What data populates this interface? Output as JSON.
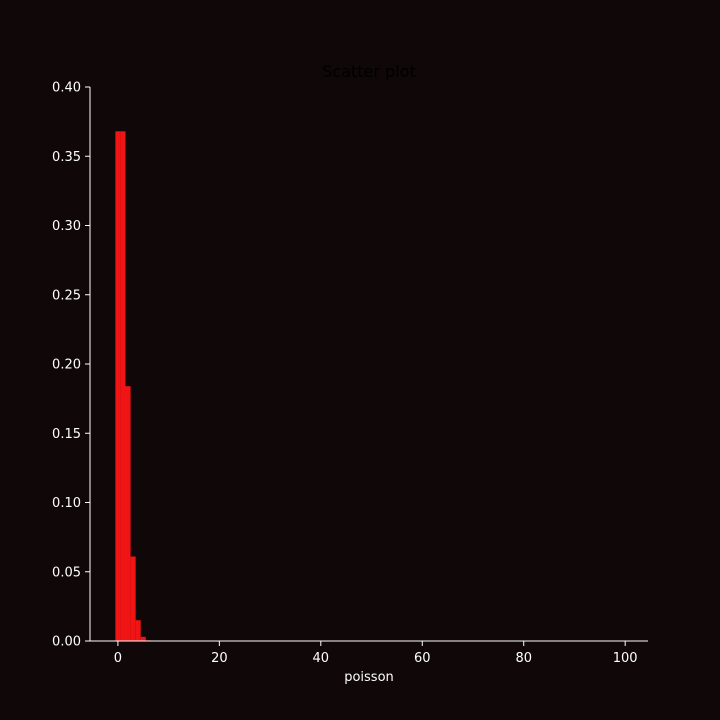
{
  "colors": {
    "background": "#0f0708",
    "bar": "#f01414",
    "axis": "#ffffff",
    "title": "#000000"
  },
  "chart_data": {
    "type": "bar",
    "title": "Scatter plot",
    "xlabel": "poisson",
    "ylabel": "",
    "xlim": [
      -5.5,
      104.5
    ],
    "ylim": [
      0,
      0.4
    ],
    "grid": false,
    "legend": "none",
    "x_ticks": [
      0,
      20,
      40,
      60,
      80,
      100
    ],
    "x_tick_labels": [
      "0",
      "20",
      "40",
      "60",
      "80",
      "100"
    ],
    "y_ticks": [
      0,
      0.05,
      0.1,
      0.15,
      0.2,
      0.25,
      0.3,
      0.35,
      0.4
    ],
    "y_tick_labels": [
      "0.00",
      "0.05",
      "0.10",
      "0.15",
      "0.20",
      "0.25",
      "0.30",
      "0.35",
      "0.40"
    ],
    "bar_width": 1,
    "x": [
      0,
      1,
      2,
      3,
      4,
      5,
      6
    ],
    "values": [
      0.368,
      0.368,
      0.184,
      0.061,
      0.015,
      0.003,
      0.0005
    ]
  }
}
